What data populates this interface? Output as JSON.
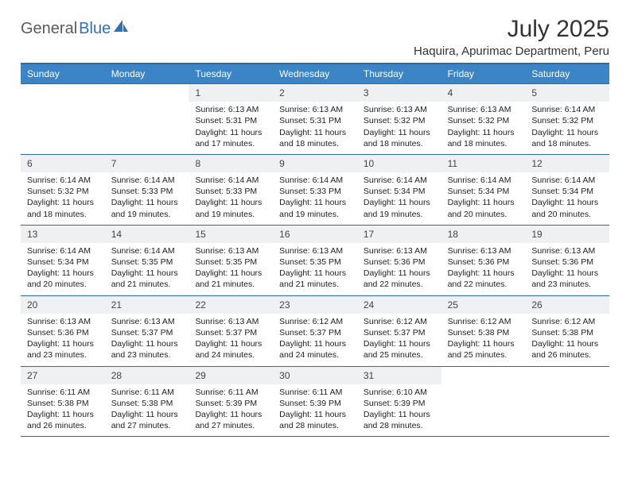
{
  "logo": {
    "word1": "General",
    "word2": "Blue",
    "icon_color": "#2d6fb8"
  },
  "header": {
    "title": "July 2025",
    "location": "Haquira, Apurimac Department, Peru"
  },
  "colors": {
    "header_bg": "#3b85c6",
    "header_border": "#2b6aa8",
    "daynum_bg": "#eff0f1",
    "text": "#222222",
    "logo_gray": "#5a5a5a",
    "logo_blue": "#2d6fb8"
  },
  "weekdays": [
    "Sunday",
    "Monday",
    "Tuesday",
    "Wednesday",
    "Thursday",
    "Friday",
    "Saturday"
  ],
  "calendar": {
    "first_weekday_index": 2,
    "days": [
      {
        "n": 1,
        "sunrise": "6:13 AM",
        "sunset": "5:31 PM",
        "daylight": "11 hours and 17 minutes."
      },
      {
        "n": 2,
        "sunrise": "6:13 AM",
        "sunset": "5:31 PM",
        "daylight": "11 hours and 18 minutes."
      },
      {
        "n": 3,
        "sunrise": "6:13 AM",
        "sunset": "5:32 PM",
        "daylight": "11 hours and 18 minutes."
      },
      {
        "n": 4,
        "sunrise": "6:13 AM",
        "sunset": "5:32 PM",
        "daylight": "11 hours and 18 minutes."
      },
      {
        "n": 5,
        "sunrise": "6:14 AM",
        "sunset": "5:32 PM",
        "daylight": "11 hours and 18 minutes."
      },
      {
        "n": 6,
        "sunrise": "6:14 AM",
        "sunset": "5:32 PM",
        "daylight": "11 hours and 18 minutes."
      },
      {
        "n": 7,
        "sunrise": "6:14 AM",
        "sunset": "5:33 PM",
        "daylight": "11 hours and 19 minutes."
      },
      {
        "n": 8,
        "sunrise": "6:14 AM",
        "sunset": "5:33 PM",
        "daylight": "11 hours and 19 minutes."
      },
      {
        "n": 9,
        "sunrise": "6:14 AM",
        "sunset": "5:33 PM",
        "daylight": "11 hours and 19 minutes."
      },
      {
        "n": 10,
        "sunrise": "6:14 AM",
        "sunset": "5:34 PM",
        "daylight": "11 hours and 19 minutes."
      },
      {
        "n": 11,
        "sunrise": "6:14 AM",
        "sunset": "5:34 PM",
        "daylight": "11 hours and 20 minutes."
      },
      {
        "n": 12,
        "sunrise": "6:14 AM",
        "sunset": "5:34 PM",
        "daylight": "11 hours and 20 minutes."
      },
      {
        "n": 13,
        "sunrise": "6:14 AM",
        "sunset": "5:34 PM",
        "daylight": "11 hours and 20 minutes."
      },
      {
        "n": 14,
        "sunrise": "6:14 AM",
        "sunset": "5:35 PM",
        "daylight": "11 hours and 21 minutes."
      },
      {
        "n": 15,
        "sunrise": "6:13 AM",
        "sunset": "5:35 PM",
        "daylight": "11 hours and 21 minutes."
      },
      {
        "n": 16,
        "sunrise": "6:13 AM",
        "sunset": "5:35 PM",
        "daylight": "11 hours and 21 minutes."
      },
      {
        "n": 17,
        "sunrise": "6:13 AM",
        "sunset": "5:36 PM",
        "daylight": "11 hours and 22 minutes."
      },
      {
        "n": 18,
        "sunrise": "6:13 AM",
        "sunset": "5:36 PM",
        "daylight": "11 hours and 22 minutes."
      },
      {
        "n": 19,
        "sunrise": "6:13 AM",
        "sunset": "5:36 PM",
        "daylight": "11 hours and 23 minutes."
      },
      {
        "n": 20,
        "sunrise": "6:13 AM",
        "sunset": "5:36 PM",
        "daylight": "11 hours and 23 minutes."
      },
      {
        "n": 21,
        "sunrise": "6:13 AM",
        "sunset": "5:37 PM",
        "daylight": "11 hours and 23 minutes."
      },
      {
        "n": 22,
        "sunrise": "6:13 AM",
        "sunset": "5:37 PM",
        "daylight": "11 hours and 24 minutes."
      },
      {
        "n": 23,
        "sunrise": "6:12 AM",
        "sunset": "5:37 PM",
        "daylight": "11 hours and 24 minutes."
      },
      {
        "n": 24,
        "sunrise": "6:12 AM",
        "sunset": "5:37 PM",
        "daylight": "11 hours and 25 minutes."
      },
      {
        "n": 25,
        "sunrise": "6:12 AM",
        "sunset": "5:38 PM",
        "daylight": "11 hours and 25 minutes."
      },
      {
        "n": 26,
        "sunrise": "6:12 AM",
        "sunset": "5:38 PM",
        "daylight": "11 hours and 26 minutes."
      },
      {
        "n": 27,
        "sunrise": "6:11 AM",
        "sunset": "5:38 PM",
        "daylight": "11 hours and 26 minutes."
      },
      {
        "n": 28,
        "sunrise": "6:11 AM",
        "sunset": "5:38 PM",
        "daylight": "11 hours and 27 minutes."
      },
      {
        "n": 29,
        "sunrise": "6:11 AM",
        "sunset": "5:39 PM",
        "daylight": "11 hours and 27 minutes."
      },
      {
        "n": 30,
        "sunrise": "6:11 AM",
        "sunset": "5:39 PM",
        "daylight": "11 hours and 28 minutes."
      },
      {
        "n": 31,
        "sunrise": "6:10 AM",
        "sunset": "5:39 PM",
        "daylight": "11 hours and 28 minutes."
      }
    ]
  },
  "labels": {
    "sunrise": "Sunrise:",
    "sunset": "Sunset:",
    "daylight": "Daylight:"
  }
}
